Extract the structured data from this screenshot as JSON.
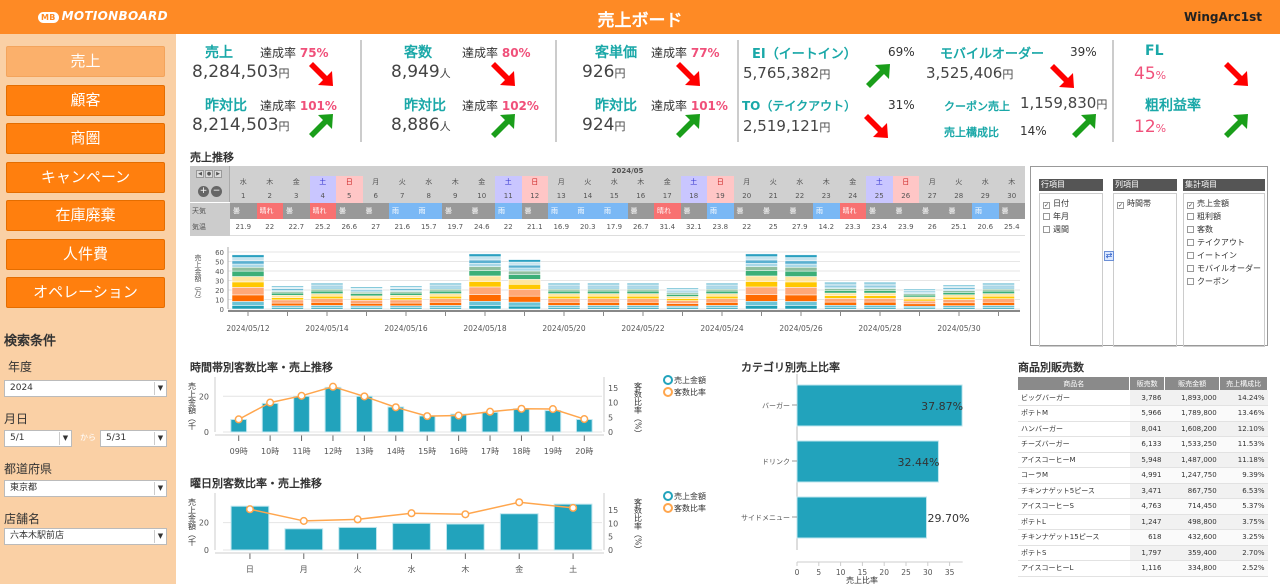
{
  "header": {
    "logo": "MOTIONBOARD",
    "logo_mark": "MB",
    "title": "売上ボード",
    "brand": "WingArc1st"
  },
  "sidebar": {
    "nav": [
      {
        "label": "売上",
        "active": true
      },
      {
        "label": "顧客"
      },
      {
        "label": "商圏"
      },
      {
        "label": "キャンペーン"
      },
      {
        "label": "在庫廃棄"
      },
      {
        "label": "人件費"
      },
      {
        "label": "オペレーション"
      }
    ],
    "search_title": "検索条件",
    "year_label": "年度",
    "year_value": "2024",
    "date_label": "月日",
    "date_from": "5/1",
    "date_sep": "から",
    "date_to": "5/31",
    "pref_label": "都道府県",
    "pref_value": "東京都",
    "store_label": "店舗名",
    "store_value": "六本木駅前店"
  },
  "colors": {
    "accent": "#fe8a25",
    "kpi_label": "#1aa8a8",
    "pct": "#f0507a",
    "up": "#1a9e1a",
    "down": "#ff0000",
    "bar": "#22a3bc",
    "line": "#ffa64d"
  },
  "kpis": {
    "sales": {
      "label": "売上",
      "rate_label": "達成率",
      "rate": "75%",
      "value": "8,284,503",
      "unit": "円",
      "trend": "down",
      "yoy_label": "昨対比",
      "yoy_rate": "101%",
      "yoy_value": "8,214,503",
      "yoy_trend": "up"
    },
    "customers": {
      "label": "客数",
      "rate_label": "達成率",
      "rate": "80%",
      "value": "8,949",
      "unit": "人",
      "trend": "down",
      "yoy_label": "昨対比",
      "yoy_rate": "102%",
      "yoy_value": "8,886",
      "yoy_trend": "up"
    },
    "unit_price": {
      "label": "客単価",
      "rate_label": "達成率",
      "rate": "77%",
      "value": "926",
      "unit": "円",
      "trend": "down",
      "yoy_label": "昨対比",
      "yoy_rate": "101%",
      "yoy_value": "924",
      "yoy_trend": "up"
    },
    "channels": {
      "ei_label": "EI（イートイン）",
      "ei_rate": "69%",
      "ei_value": "5,765,382",
      "ei_trend": "up",
      "to_label": "TO（テイクアウト）",
      "to_rate": "31%",
      "to_value": "2,519,121",
      "to_trend": "down",
      "mobile_label": "モバイルオーダー",
      "mobile_rate": "39%",
      "mobile_value": "3,525,406",
      "mobile_trend": "down",
      "coupon_label": "クーポン売上",
      "coupon_value": "1,159,830",
      "coupon_share_label": "売上構成比",
      "coupon_share": "14%",
      "coupon_trend": "up",
      "unit": "円"
    },
    "fl": {
      "label": "FL",
      "value": "45",
      "unit": "%",
      "trend": "down"
    },
    "gross": {
      "label": "粗利益率",
      "value": "12",
      "unit": "%",
      "trend": "up"
    }
  },
  "sales_trend": {
    "title": "売上推移",
    "month": "2024/05",
    "row_labels": {
      "weather": "天気",
      "temp": "気温"
    },
    "days": [
      1,
      2,
      3,
      4,
      5,
      6,
      7,
      8,
      9,
      10,
      11,
      12,
      13,
      14,
      15,
      16,
      17,
      18,
      19,
      20,
      21,
      22,
      23,
      24,
      25,
      26,
      27,
      28,
      29,
      30
    ],
    "weekdays": [
      "水",
      "木",
      "金",
      "土",
      "日",
      "月",
      "火",
      "水",
      "木",
      "金",
      "土",
      "日",
      "月",
      "火",
      "水",
      "木",
      "金",
      "土",
      "日",
      "月",
      "火",
      "水",
      "木",
      "金",
      "土",
      "日",
      "月",
      "火",
      "水",
      "木"
    ],
    "weather": [
      "曇",
      "晴れ",
      "曇",
      "晴れ",
      "曇",
      "曇",
      "雨",
      "雨",
      "曇",
      "曇",
      "雨",
      "曇",
      "雨",
      "雨",
      "雨",
      "曇",
      "晴れ",
      "曇",
      "雨",
      "曇",
      "曇",
      "曇",
      "雨",
      "晴れ",
      "曇",
      "曇",
      "曇",
      "曇",
      "雨",
      "曇"
    ],
    "temps": [
      "21.9",
      "22",
      "22.7",
      "25.2",
      "26.6",
      "27",
      "21.6",
      "15.7",
      "19.7",
      "24.6",
      "22",
      "21.1",
      "16.9",
      "20.3",
      "17.9",
      "26.7",
      "31.4",
      "32.1",
      "23.8",
      "22",
      "25",
      "27.9",
      "14.2",
      "23.3",
      "23.4",
      "23.9",
      "26",
      "25.1",
      "20.6",
      "25.4"
    ],
    "weather_colors": {
      "曇": "#999999",
      "晴れ": "#f87171",
      "雨": "#7ab8f5"
    }
  },
  "pivot": {
    "rows": {
      "title": "行項目",
      "items": [
        {
          "label": "日付",
          "checked": true
        },
        {
          "label": "年月",
          "checked": false
        },
        {
          "label": "週間",
          "checked": false
        }
      ]
    },
    "cols": {
      "title": "列項目",
      "items": [
        {
          "label": "時間帯",
          "checked": true
        }
      ]
    },
    "agg": {
      "title": "集計項目",
      "items": [
        {
          "label": "売上金額",
          "checked": true
        },
        {
          "label": "粗利額",
          "checked": false
        },
        {
          "label": "客数",
          "checked": false
        },
        {
          "label": "テイクアウト",
          "checked": false
        },
        {
          "label": "イートイン",
          "checked": false
        },
        {
          "label": "モバイルオーダー",
          "checked": false
        },
        {
          "label": "クーポン",
          "checked": false
        }
      ]
    }
  },
  "chart_data": [
    {
      "type": "bar",
      "stacked": true,
      "ylabel": "売上金額（万）",
      "ylim": [
        0,
        60
      ],
      "yticks": [
        0,
        10,
        20,
        30,
        40,
        50,
        60
      ],
      "categories": [
        "2024/05/12",
        "2024/05/13",
        "2024/05/14",
        "2024/05/15",
        "2024/05/16",
        "2024/05/17",
        "2024/05/18",
        "2024/05/19",
        "2024/05/20",
        "2024/05/21",
        "2024/05/22",
        "2024/05/23",
        "2024/05/24",
        "2024/05/25",
        "2024/05/26",
        "2024/05/27",
        "2024/05/28",
        "2024/05/29",
        "2024/05/30",
        "2024/05/31"
      ],
      "xtick_labels": [
        "2024/05/12",
        "2024/05/14",
        "2024/05/16",
        "2024/05/18",
        "2024/05/20",
        "2024/05/22",
        "2024/05/24",
        "2024/05/26",
        "2024/05/28",
        "2024/05/30"
      ],
      "totals": [
        57,
        24,
        27,
        23,
        24,
        27,
        58,
        52,
        27,
        27,
        27,
        22,
        27,
        58,
        57,
        28,
        28,
        21,
        25,
        27
      ],
      "segment_colors": [
        "#1f9fb5",
        "#6cc4d6",
        "#ff6a00",
        "#ffa878",
        "#ffc800",
        "#ffe6a0",
        "#3caf78",
        "#8fbf9f",
        "#a8d8e8",
        "#5ab0d0",
        "#c8e4ee",
        "#2aa0c0"
      ],
      "grid": true
    },
    {
      "type": "bar+line",
      "title": "時間帯別客数比率・売上推移",
      "ylabel": "売上金額（千",
      "y2label": "客数比率（%）",
      "categories": [
        "09時",
        "10時",
        "11時",
        "12時",
        "13時",
        "14時",
        "15時",
        "16時",
        "17時",
        "18時",
        "19時",
        "20時"
      ],
      "series": [
        {
          "name": "売上金額",
          "type": "bar",
          "values": [
            7,
            16,
            20,
            25,
            20,
            14,
            9,
            10,
            11,
            13,
            12,
            7
          ]
        },
        {
          "name": "客数比率",
          "type": "line",
          "axis": "right",
          "values": [
            4.3,
            10,
            12.3,
            15.4,
            12.1,
            8.4,
            5.4,
            5.6,
            6.9,
            7.9,
            7.8,
            4.4
          ]
        }
      ],
      "ylim": [
        0,
        28
      ],
      "yticks": [
        0,
        20
      ],
      "y2lim": [
        0,
        17
      ],
      "y2ticks": [
        0,
        5,
        10,
        15
      ],
      "legend": "right"
    },
    {
      "type": "bar+line",
      "title": "曜日別客数比率・売上推移",
      "ylabel": "売上金額（千",
      "y2label": "客数比率（%）",
      "categories": [
        "日",
        "月",
        "火",
        "水",
        "木",
        "金",
        "土"
      ],
      "series": [
        {
          "name": "売上金額",
          "type": "bar",
          "values": [
            32,
            15.5,
            16.5,
            19.5,
            19,
            26.5,
            33.5
          ]
        },
        {
          "name": "客数比率",
          "type": "line",
          "axis": "right",
          "values": [
            15.3,
            10.9,
            11.5,
            13.8,
            13.4,
            17.9,
            15.8
          ]
        }
      ],
      "ylim": [
        0,
        38
      ],
      "yticks": [
        0,
        20
      ],
      "y2lim": [
        0,
        19.5
      ],
      "y2ticks": [
        0,
        5,
        10,
        15
      ],
      "legend": "right"
    },
    {
      "type": "hbar",
      "title": "カテゴリ別売上比率",
      "xlabel": "売上比率",
      "categories": [
        "バーガー",
        "ドリンク",
        "サイドメニュー"
      ],
      "values": [
        37.87,
        32.44,
        29.7
      ],
      "labels": [
        "37.87%",
        "32.44%",
        "29.70%"
      ],
      "xlim": [
        0,
        38
      ],
      "xticks": [
        0,
        5,
        10,
        15,
        20,
        25,
        30,
        35
      ]
    }
  ],
  "product_table": {
    "title": "商品別販売数",
    "columns": [
      "商品名",
      "販売数",
      "販売金額",
      "売上構成比"
    ],
    "rows": [
      [
        "ビッグバーガー",
        "3,786",
        "1,893,000",
        "14.24%"
      ],
      [
        "ポテトM",
        "5,966",
        "1,789,800",
        "13.46%"
      ],
      [
        "ハンバーガー",
        "8,041",
        "1,608,200",
        "12.10%"
      ],
      [
        "チーズバーガー",
        "6,133",
        "1,533,250",
        "11.53%"
      ],
      [
        "アイスコーヒーM",
        "5,948",
        "1,487,000",
        "11.18%"
      ],
      [
        "コーラM",
        "4,991",
        "1,247,750",
        "9.39%"
      ],
      [
        "チキンナゲット5ピース",
        "3,471",
        "867,750",
        "6.53%"
      ],
      [
        "アイスコーヒーS",
        "4,763",
        "714,450",
        "5.37%"
      ],
      [
        "ポテトL",
        "1,247",
        "498,800",
        "3.75%"
      ],
      [
        "チキンナゲット15ピース",
        "618",
        "432,600",
        "3.25%"
      ],
      [
        "ポテトS",
        "1,797",
        "359,400",
        "2.70%"
      ],
      [
        "アイスコーヒーL",
        "1,116",
        "334,800",
        "2.52%"
      ]
    ]
  }
}
